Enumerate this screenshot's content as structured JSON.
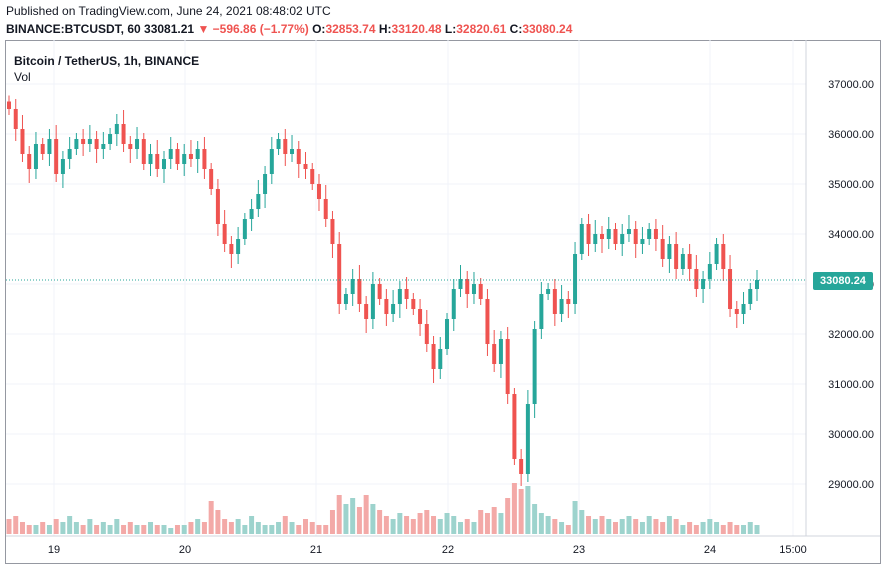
{
  "header": {
    "published": "Published on TradingView.com, June 24, 2021 08:48:02 UTC",
    "symbol": "BINANCE:BTCUSDT, 60",
    "price": "33081.21",
    "arrow": "▼",
    "change": "−596.86 (−1.77%)",
    "o_label": "O:",
    "o_value": "32853.74",
    "h_label": "H:",
    "h_value": "33120.48",
    "l_label": "L:",
    "l_value": "32820.61",
    "c_label": "C:",
    "c_value": "33080.24"
  },
  "legend": {
    "title": "Bitcoin / TetherUS, 1h, BINANCE",
    "volume": "Vol"
  },
  "colors": {
    "up": "#26a69a",
    "down": "#ef5350",
    "vol_up": "#9dd3cd",
    "vol_down": "#f3a9a7",
    "grid": "#f0f3fa"
  },
  "last_price_label": "33080.24",
  "chart_data": {
    "type": "candlestick",
    "title": "Bitcoin / TetherUS, 1h, BINANCE",
    "ylim": [
      28000,
      37500
    ],
    "y_ticks": [
      "37000.00",
      "36000.00",
      "35000.00",
      "34000.00",
      "33000.00",
      "32000.00",
      "31000.00",
      "30000.00",
      "29000.00"
    ],
    "x_ticks": [
      "19",
      "20",
      "21",
      "22",
      "23",
      "24",
      "15:00"
    ],
    "last_price": 33080.24,
    "price_path": [
      36500,
      36100,
      35600,
      35300,
      35800,
      35600,
      35900,
      35200,
      35500,
      35700,
      35900,
      35800,
      35900,
      35700,
      35800,
      36000,
      36200,
      35800,
      35700,
      35900,
      35400,
      35600,
      35300,
      35500,
      35700,
      35400,
      35600,
      35500,
      35700,
      35300,
      34900,
      34200,
      33800,
      33600,
      33900,
      34300,
      34500,
      34800,
      35200,
      35700,
      35900,
      35600,
      35700,
      35400,
      35300,
      35000,
      34700,
      34300,
      33800,
      32600,
      32800,
      33100,
      32600,
      32300,
      33000,
      32700,
      32400,
      32600,
      32900,
      32700,
      32500,
      32200,
      31800,
      31300,
      31700,
      32300,
      32900,
      33100,
      32800,
      33000,
      32700,
      31800,
      31400,
      31900,
      30800,
      29500,
      29200,
      30600,
      32100,
      32800,
      32900,
      32400,
      32700,
      32600,
      33600,
      34200,
      33800,
      34000,
      33900,
      34100,
      33800,
      34000,
      34100,
      33800,
      33900,
      34100,
      33900,
      33500,
      33800,
      33300,
      33600,
      33300,
      32900,
      33100,
      33400,
      33800,
      33300,
      32500,
      32400,
      32600,
      32900,
      33080
    ],
    "volume_path": [
      0.5,
      0.6,
      0.4,
      0.3,
      0.3,
      0.4,
      0.3,
      0.5,
      0.4,
      0.6,
      0.4,
      0.3,
      0.5,
      0.3,
      0.4,
      0.3,
      0.5,
      0.3,
      0.4,
      0.3,
      0.3,
      0.4,
      0.3,
      0.3,
      0.2,
      0.3,
      0.3,
      0.4,
      0.5,
      0.4,
      1.1,
      0.8,
      0.5,
      0.4,
      0.5,
      0.3,
      0.6,
      0.4,
      0.3,
      0.3,
      0.4,
      0.6,
      0.4,
      0.3,
      0.5,
      0.4,
      0.3,
      0.3,
      0.8,
      1.3,
      1.0,
      1.2,
      0.9,
      1.3,
      1.0,
      0.8,
      0.6,
      0.5,
      0.7,
      0.6,
      0.5,
      0.7,
      0.8,
      0.6,
      0.5,
      0.7,
      0.6,
      0.4,
      0.5,
      0.4,
      0.8,
      0.7,
      0.9,
      0.7,
      1.2,
      1.7,
      1.5,
      1.6,
      1.0,
      0.7,
      0.6,
      0.5,
      0.4,
      0.3,
      1.1,
      0.8,
      0.6,
      0.5,
      0.6,
      0.5,
      0.4,
      0.5,
      0.6,
      0.5,
      0.4,
      0.6,
      0.5,
      0.4,
      0.6,
      0.5,
      0.3,
      0.4,
      0.3,
      0.4,
      0.5,
      0.4,
      0.3,
      0.4,
      0.3,
      0.3,
      0.4,
      0.3
    ]
  }
}
